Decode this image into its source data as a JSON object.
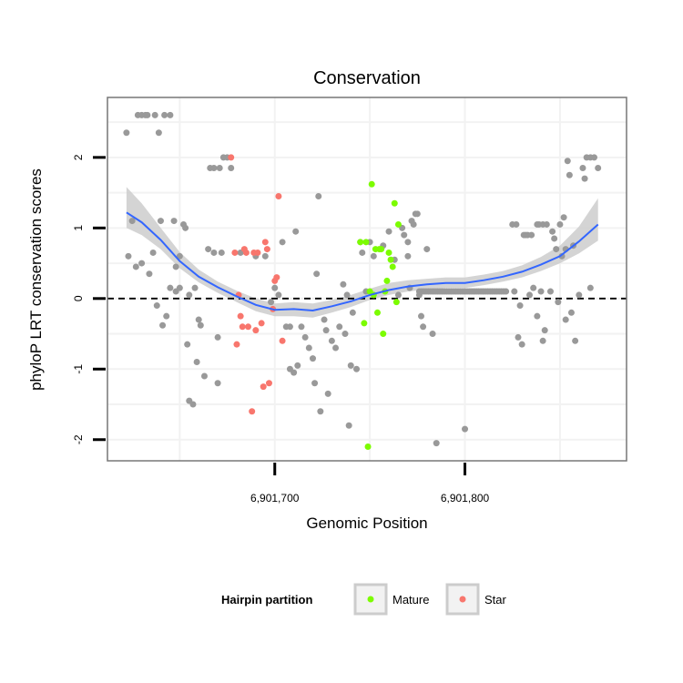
{
  "chart_data": {
    "type": "scatter",
    "title": "Conservation",
    "xlabel": "Genomic Position",
    "ylabel": "phyloP LRT conservation scores",
    "xlim": [
      6901612,
      6901885
    ],
    "ylim": [
      -2.3,
      2.85
    ],
    "x_ticks": [
      6901700,
      6901800
    ],
    "x_tick_labels": [
      "6,901,700",
      "6,901,800"
    ],
    "y_ticks": [
      -2,
      -1,
      0,
      1,
      2
    ],
    "y_tick_labels": [
      "-2",
      "-1",
      "0",
      "1",
      "2"
    ],
    "grid": true,
    "reference_line": {
      "y": 0,
      "style": "dashed"
    },
    "colors": {
      "Other": "#999999",
      "Mature": "#7CFC00",
      "Star": "#F8766D",
      "smooth": "#3366FF",
      "band": "#CCCCCC",
      "panel_border": "#777777",
      "grid": "#F2F2F2"
    },
    "legend": {
      "title": "Hairpin partition",
      "placement": "bottom",
      "entries": [
        "Mature",
        "Star"
      ]
    },
    "series": [
      {
        "group": "Other",
        "points": [
          [
            6901622,
            2.35
          ],
          [
            6901623,
            0.6
          ],
          [
            6901625,
            1.1
          ],
          [
            6901627,
            0.45
          ],
          [
            6901628,
            2.6
          ],
          [
            6901630,
            2.6
          ],
          [
            6901630,
            0.5
          ],
          [
            6901632,
            2.6
          ],
          [
            6901633,
            2.6
          ],
          [
            6901634,
            0.35
          ],
          [
            6901636,
            0.65
          ],
          [
            6901637,
            2.6
          ],
          [
            6901638,
            -0.1
          ],
          [
            6901639,
            2.35
          ],
          [
            6901640,
            1.1
          ],
          [
            6901641,
            -0.38
          ],
          [
            6901642,
            2.6
          ],
          [
            6901643,
            -0.25
          ],
          [
            6901645,
            2.6
          ],
          [
            6901645,
            0.15
          ],
          [
            6901647,
            1.1
          ],
          [
            6901648,
            0.45
          ],
          [
            6901648,
            0.1
          ],
          [
            6901650,
            0.6
          ],
          [
            6901650,
            0.15
          ],
          [
            6901652,
            1.05
          ],
          [
            6901653,
            1.0
          ],
          [
            6901654,
            -0.65
          ],
          [
            6901655,
            -1.45
          ],
          [
            6901655,
            0.05
          ],
          [
            6901657,
            -1.5
          ],
          [
            6901658,
            0.15
          ],
          [
            6901659,
            -0.9
          ],
          [
            6901660,
            -0.3
          ],
          [
            6901661,
            -0.38
          ],
          [
            6901663,
            -1.1
          ],
          [
            6901665,
            0.7
          ],
          [
            6901666,
            1.85
          ],
          [
            6901668,
            1.85
          ],
          [
            6901668,
            0.65
          ],
          [
            6901670,
            -1.2
          ],
          [
            6901670,
            -0.55
          ],
          [
            6901671,
            1.85
          ],
          [
            6901672,
            0.65
          ],
          [
            6901673,
            2.0
          ],
          [
            6901675,
            2.0
          ],
          [
            6901677,
            1.85
          ],
          [
            6901682,
            0.65
          ],
          [
            6901690,
            0.6
          ],
          [
            6901695,
            0.6
          ],
          [
            6901698,
            -0.05
          ],
          [
            6901700,
            0.15
          ],
          [
            6901702,
            0.05
          ],
          [
            6901704,
            0.8
          ],
          [
            6901706,
            -0.4
          ],
          [
            6901708,
            -0.4
          ],
          [
            6901708,
            -1.0
          ],
          [
            6901710,
            -1.05
          ],
          [
            6901711,
            0.95
          ],
          [
            6901712,
            -0.95
          ],
          [
            6901714,
            -0.4
          ],
          [
            6901716,
            -0.55
          ],
          [
            6901718,
            -0.7
          ],
          [
            6901720,
            -0.85
          ],
          [
            6901721,
            -1.2
          ],
          [
            6901722,
            0.35
          ],
          [
            6901723,
            1.45
          ],
          [
            6901724,
            -1.6
          ],
          [
            6901726,
            -0.3
          ],
          [
            6901727,
            -0.45
          ],
          [
            6901728,
            -1.35
          ],
          [
            6901730,
            -0.6
          ],
          [
            6901732,
            -0.7
          ],
          [
            6901734,
            -0.4
          ],
          [
            6901736,
            0.2
          ],
          [
            6901737,
            -0.5
          ],
          [
            6901738,
            0.05
          ],
          [
            6901739,
            -1.8
          ],
          [
            6901740,
            -0.95
          ],
          [
            6901741,
            -0.2
          ],
          [
            6901743,
            -1.0
          ],
          [
            6901745,
            0.8
          ],
          [
            6901746,
            0.65
          ],
          [
            6901748,
            0.1
          ],
          [
            6901750,
            0.8
          ],
          [
            6901752,
            0.6
          ],
          [
            6901757,
            0.75
          ],
          [
            6901760,
            0.95
          ],
          [
            6901763,
            0.55
          ],
          [
            6901765,
            0.05
          ],
          [
            6901767,
            1.0
          ],
          [
            6901768,
            0.9
          ],
          [
            6901770,
            0.6
          ],
          [
            6901770,
            0.8
          ],
          [
            6901771,
            0.15
          ],
          [
            6901772,
            1.1
          ],
          [
            6901773,
            1.05
          ],
          [
            6901774,
            1.2
          ],
          [
            6901775,
            1.2
          ],
          [
            6901776,
            0.05
          ],
          [
            6901777,
            -0.25
          ],
          [
            6901778,
            -0.4
          ],
          [
            6901780,
            0.7
          ],
          [
            6901783,
            -0.5
          ],
          [
            6901785,
            -2.05
          ],
          [
            6901800,
            -1.85
          ],
          [
            6901825,
            1.05
          ],
          [
            6901826,
            0.1
          ],
          [
            6901827,
            1.05
          ],
          [
            6901828,
            -0.55
          ],
          [
            6901829,
            -0.1
          ],
          [
            6901830,
            -0.65
          ],
          [
            6901831,
            0.9
          ],
          [
            6901832,
            0.9
          ],
          [
            6901833,
            0.9
          ],
          [
            6901834,
            0.05
          ],
          [
            6901835,
            0.9
          ],
          [
            6901836,
            0.15
          ],
          [
            6901838,
            1.05
          ],
          [
            6901838,
            -0.25
          ],
          [
            6901839,
            1.05
          ],
          [
            6901840,
            0.1
          ],
          [
            6901841,
            -0.6
          ],
          [
            6901841,
            1.05
          ],
          [
            6901842,
            -0.45
          ],
          [
            6901843,
            1.05
          ],
          [
            6901845,
            0.1
          ],
          [
            6901846,
            0.95
          ],
          [
            6901847,
            0.85
          ],
          [
            6901848,
            0.7
          ],
          [
            6901849,
            -0.05
          ],
          [
            6901850,
            1.05
          ],
          [
            6901851,
            0.6
          ],
          [
            6901852,
            1.15
          ],
          [
            6901853,
            -0.3
          ],
          [
            6901853,
            0.7
          ],
          [
            6901854,
            1.95
          ],
          [
            6901855,
            1.75
          ],
          [
            6901856,
            -0.2
          ],
          [
            6901857,
            0.75
          ],
          [
            6901858,
            -0.6
          ],
          [
            6901860,
            0.05
          ],
          [
            6901862,
            1.85
          ],
          [
            6901863,
            1.7
          ],
          [
            6901864,
            2.0
          ],
          [
            6901866,
            2.0
          ],
          [
            6901866,
            0.15
          ],
          [
            6901868,
            2.0
          ],
          [
            6901870,
            1.85
          ]
        ]
      },
      {
        "group": "Mature",
        "name": "Mature",
        "points": [
          [
            6901745,
            0.8
          ],
          [
            6901747,
            -0.35
          ],
          [
            6901748,
            0.8
          ],
          [
            6901749,
            -2.1
          ],
          [
            6901750,
            0.1
          ],
          [
            6901751,
            1.62
          ],
          [
            6901752,
            0.05
          ],
          [
            6901753,
            0.7
          ],
          [
            6901754,
            -0.2
          ],
          [
            6901755,
            0.7
          ],
          [
            6901756,
            0.7
          ],
          [
            6901757,
            -0.5
          ],
          [
            6901758,
            0.1
          ],
          [
            6901759,
            0.25
          ],
          [
            6901760,
            0.65
          ],
          [
            6901761,
            0.55
          ],
          [
            6901762,
            0.45
          ],
          [
            6901763,
            1.35
          ],
          [
            6901764,
            -0.05
          ],
          [
            6901765,
            1.05
          ]
        ]
      },
      {
        "group": "Star",
        "name": "Star",
        "points": [
          [
            6901677,
            2.0
          ],
          [
            6901679,
            0.65
          ],
          [
            6901680,
            -0.65
          ],
          [
            6901681,
            0.05
          ],
          [
            6901682,
            -0.25
          ],
          [
            6901683,
            -0.4
          ],
          [
            6901684,
            0.7
          ],
          [
            6901685,
            0.65
          ],
          [
            6901686,
            -0.4
          ],
          [
            6901688,
            -1.6
          ],
          [
            6901689,
            0.65
          ],
          [
            6901690,
            -0.45
          ],
          [
            6901691,
            0.65
          ],
          [
            6901693,
            -0.35
          ],
          [
            6901694,
            -1.25
          ],
          [
            6901695,
            0.8
          ],
          [
            6901696,
            0.7
          ],
          [
            6901697,
            -1.2
          ],
          [
            6901699,
            -0.15
          ],
          [
            6901700,
            0.25
          ],
          [
            6901701,
            0.3
          ],
          [
            6901702,
            1.45
          ],
          [
            6901704,
            -0.6
          ]
        ]
      },
      {
        "group": "Other",
        "points_dense_line": {
          "x_from": 6901776,
          "x_to": 6901822,
          "step": 1.2,
          "y": 0.1
        }
      }
    ],
    "smooth": {
      "line": [
        [
          6901622,
          1.22
        ],
        [
          6901630,
          1.08
        ],
        [
          6901640,
          0.83
        ],
        [
          6901650,
          0.53
        ],
        [
          6901660,
          0.31
        ],
        [
          6901670,
          0.16
        ],
        [
          6901680,
          0.03
        ],
        [
          6901690,
          -0.09
        ],
        [
          6901700,
          -0.16
        ],
        [
          6901710,
          -0.15
        ],
        [
          6901720,
          -0.17
        ],
        [
          6901730,
          -0.11
        ],
        [
          6901740,
          -0.04
        ],
        [
          6901750,
          0.05
        ],
        [
          6901760,
          0.12
        ],
        [
          6901770,
          0.17
        ],
        [
          6901780,
          0.2
        ],
        [
          6901790,
          0.22
        ],
        [
          6901800,
          0.22
        ],
        [
          6901810,
          0.26
        ],
        [
          6901820,
          0.31
        ],
        [
          6901830,
          0.38
        ],
        [
          6901840,
          0.48
        ],
        [
          6901850,
          0.6
        ],
        [
          6901860,
          0.81
        ],
        [
          6901870,
          1.05
        ]
      ],
      "lower": [
        [
          6901622,
          1.0
        ],
        [
          6901630,
          0.9
        ],
        [
          6901640,
          0.7
        ],
        [
          6901650,
          0.43
        ],
        [
          6901660,
          0.23
        ],
        [
          6901670,
          0.08
        ],
        [
          6901680,
          -0.05
        ],
        [
          6901690,
          -0.18
        ],
        [
          6901700,
          -0.25
        ],
        [
          6901710,
          -0.25
        ],
        [
          6901720,
          -0.27
        ],
        [
          6901730,
          -0.2
        ],
        [
          6901740,
          -0.12
        ],
        [
          6901750,
          -0.02
        ],
        [
          6901760,
          0.05
        ],
        [
          6901770,
          0.1
        ],
        [
          6901780,
          0.13
        ],
        [
          6901790,
          0.15
        ],
        [
          6901800,
          0.15
        ],
        [
          6901810,
          0.19
        ],
        [
          6901820,
          0.24
        ],
        [
          6901830,
          0.3
        ],
        [
          6901840,
          0.39
        ],
        [
          6901850,
          0.5
        ],
        [
          6901860,
          0.64
        ],
        [
          6901870,
          0.82
        ]
      ],
      "upper": [
        [
          6901622,
          1.58
        ],
        [
          6901630,
          1.35
        ],
        [
          6901640,
          1.0
        ],
        [
          6901650,
          0.66
        ],
        [
          6901660,
          0.41
        ],
        [
          6901670,
          0.24
        ],
        [
          6901680,
          0.11
        ],
        [
          6901690,
          0.0
        ],
        [
          6901700,
          -0.07
        ],
        [
          6901710,
          -0.05
        ],
        [
          6901720,
          -0.07
        ],
        [
          6901730,
          -0.02
        ],
        [
          6901740,
          0.05
        ],
        [
          6901750,
          0.14
        ],
        [
          6901760,
          0.22
        ],
        [
          6901770,
          0.26
        ],
        [
          6901780,
          0.28
        ],
        [
          6901790,
          0.3
        ],
        [
          6901800,
          0.3
        ],
        [
          6901810,
          0.34
        ],
        [
          6901820,
          0.39
        ],
        [
          6901830,
          0.47
        ],
        [
          6901840,
          0.59
        ],
        [
          6901850,
          0.75
        ],
        [
          6901860,
          1.02
        ],
        [
          6901870,
          1.42
        ]
      ]
    }
  }
}
